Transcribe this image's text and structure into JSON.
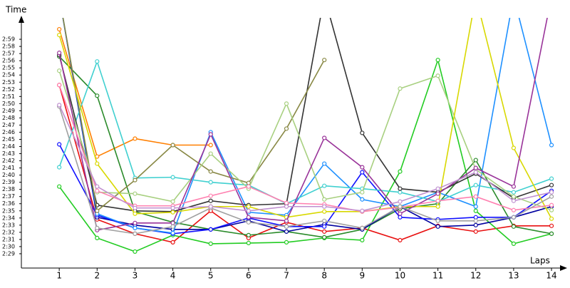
{
  "chart_data": {
    "type": "line",
    "y_label": "Time",
    "x_label": "Laps",
    "x": [
      1,
      2,
      3,
      4,
      5,
      6,
      7,
      8,
      9,
      10,
      11,
      12,
      13,
      14
    ],
    "xlim": [
      0,
      14.3
    ],
    "xticks": [
      1,
      2,
      3,
      4,
      5,
      6,
      7,
      8,
      9,
      10,
      11,
      12,
      13,
      14
    ],
    "ylim": [
      147,
      182
    ],
    "yticks": [
      {
        "value": 149,
        "label": "2:29"
      },
      {
        "value": 150,
        "label": "2:30"
      },
      {
        "value": 151,
        "label": "2:31"
      },
      {
        "value": 152,
        "label": "2:32"
      },
      {
        "value": 153,
        "label": "2:33"
      },
      {
        "value": 154,
        "label": "2:34"
      },
      {
        "value": 155,
        "label": "2:35"
      },
      {
        "value": 156,
        "label": "2:36"
      },
      {
        "value": 157,
        "label": "2:37"
      },
      {
        "value": 158,
        "label": "2:38"
      },
      {
        "value": 159,
        "label": "2:39"
      },
      {
        "value": 160,
        "label": "2:40"
      },
      {
        "value": 161,
        "label": "2:41"
      },
      {
        "value": 162,
        "label": "2:42"
      },
      {
        "value": 163,
        "label": "2:43"
      },
      {
        "value": 164,
        "label": "2:44"
      },
      {
        "value": 165,
        "label": "2:45"
      },
      {
        "value": 166,
        "label": "2:46"
      },
      {
        "value": 167,
        "label": "2:47"
      },
      {
        "value": 168,
        "label": "2:48"
      },
      {
        "value": 169,
        "label": "2:49"
      },
      {
        "value": 170,
        "label": "2:50"
      },
      {
        "value": 171,
        "label": "2:51"
      },
      {
        "value": 172,
        "label": "2:52"
      },
      {
        "value": 173,
        "label": "2:53"
      },
      {
        "value": 174,
        "label": "2:54"
      },
      {
        "value": 175,
        "label": "2:55"
      },
      {
        "value": 176,
        "label": "2:56"
      },
      {
        "value": 177,
        "label": "2:57"
      },
      {
        "value": 178,
        "label": "2:58"
      },
      {
        "value": 179,
        "label": "2:59"
      }
    ],
    "series": [
      {
        "color": "#ff7f00",
        "values": [
          180.4,
          162.6,
          165.1,
          164.2,
          164.2,
          null,
          null,
          null,
          null,
          null,
          null,
          null,
          null,
          null
        ]
      },
      {
        "color": "#e81010",
        "values": [
          172.6,
          153.8,
          151.8,
          150.6,
          155.0,
          151.2,
          153.4,
          152.1,
          152.6,
          150.9,
          152.9,
          152.1,
          152.9,
          152.9
        ]
      },
      {
        "color": "#22cc22",
        "values": [
          158.4,
          151.2,
          149.3,
          151.6,
          150.4,
          150.5,
          150.6,
          151.2,
          150.9,
          160.5,
          176.1,
          155.0,
          150.4,
          151.8
        ]
      },
      {
        "color": "#2a8a2a",
        "values": [
          176.6,
          171.1,
          154.9,
          153.4,
          152.4,
          151.6,
          152.1,
          151.3,
          152.4,
          155.3,
          156.0,
          162.1,
          152.8,
          151.8
        ]
      },
      {
        "color": "#0000a0",
        "values": [
          185,
          154.1,
          153.0,
          152.4,
          152.4,
          153.6,
          152.1,
          153.1,
          152.4,
          155.6,
          152.8,
          153.0,
          154.1,
          155.6
        ]
      },
      {
        "color": "#1010ff",
        "values": [
          164.3,
          154.4,
          152.6,
          151.8,
          152.4,
          154.0,
          152.8,
          152.8,
          160.4,
          154.1,
          153.8,
          154.1,
          154.1,
          157.8
        ]
      },
      {
        "color": "#1e90ff",
        "values": [
          185,
          154.6,
          152.6,
          151.9,
          166.0,
          154.8,
          154.4,
          161.6,
          156.6,
          155.6,
          157.6,
          155.6,
          185,
          164.2
        ]
      },
      {
        "color": "#40d0d0",
        "values": [
          161.1,
          175.9,
          159.6,
          159.7,
          159.0,
          158.6,
          156.0,
          158.5,
          158.1,
          157.6,
          156.3,
          158.6,
          157.6,
          159.5
        ]
      },
      {
        "color": "#333333",
        "values": [
          176.8,
          155.8,
          155.0,
          154.9,
          156.4,
          155.8,
          156.0,
          185,
          165.9,
          158.1,
          157.6,
          160.2,
          156.8,
          158.6
        ]
      },
      {
        "color": "#888844",
        "values": [
          185,
          155.0,
          159.3,
          164.2,
          160.5,
          158.9,
          166.5,
          176.1,
          null,
          null,
          null,
          null,
          null,
          null
        ]
      },
      {
        "color": "#a8d080",
        "values": [
          174.6,
          157.6,
          157.4,
          156.3,
          163.0,
          158.1,
          170.0,
          156.6,
          157.6,
          172.1,
          173.9,
          160.8,
          157.0,
          155.1
        ]
      },
      {
        "color": "#d8d800",
        "values": [
          179.6,
          161.6,
          154.6,
          154.8,
          155.6,
          155.6,
          154.1,
          154.9,
          154.9,
          155.6,
          155.6,
          185,
          163.8,
          153.9
        ]
      },
      {
        "color": "#993399",
        "values": [
          177.1,
          152.3,
          153.3,
          153.3,
          165.7,
          154.1,
          153.6,
          165.2,
          161.1,
          154.6,
          157.4,
          161.0,
          158.4,
          185
        ]
      },
      {
        "color": "#ff80b0",
        "values": [
          172.6,
          157.8,
          155.7,
          155.7,
          157.1,
          158.4,
          156.1,
          155.9,
          154.9,
          155.5,
          156.4,
          157.0,
          155.1,
          155.8
        ]
      },
      {
        "color": "#a0a0a0",
        "values": [
          169.6,
          152.6,
          151.8,
          152.8,
          155.4,
          153.4,
          152.8,
          153.6,
          152.6,
          155.6,
          153.6,
          153.6,
          154.1,
          157.0
        ]
      },
      {
        "color": "#c090d0",
        "values": [
          169.8,
          158.4,
          155.4,
          155.4,
          155.6,
          155.0,
          155.6,
          155.6,
          155.0,
          156.3,
          158.1,
          160.4,
          156.4,
          157.6
        ]
      }
    ]
  }
}
